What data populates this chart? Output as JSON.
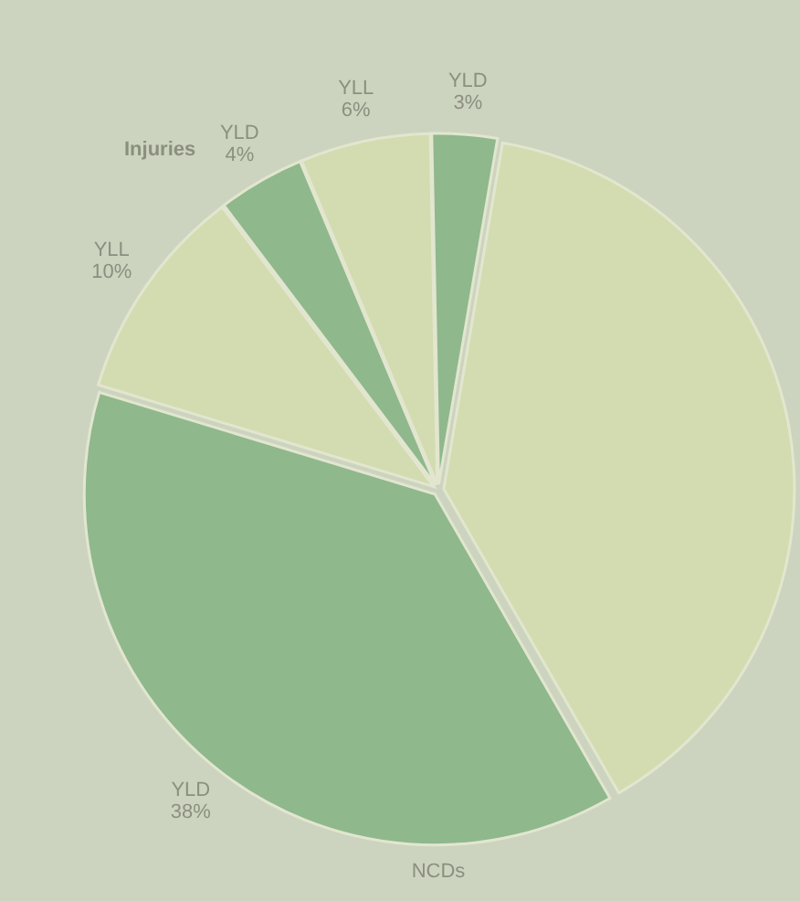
{
  "chart_data": {
    "type": "pie",
    "categories": [
      "YLD",
      null,
      "YLD",
      "YLL",
      "YLD",
      "YLL"
    ],
    "values": [
      3,
      39,
      38,
      10,
      4,
      6
    ],
    "value_labels": [
      "3%",
      null,
      "38%",
      "10%",
      "4%",
      "6%"
    ],
    "colors": [
      "#8fb88c",
      "#d3dbb0",
      "#8fb88c",
      "#d3dbb0",
      "#8fb88c",
      "#d3dbb0"
    ],
    "annotations": [
      "Injuries",
      "NCDs"
    ]
  }
}
